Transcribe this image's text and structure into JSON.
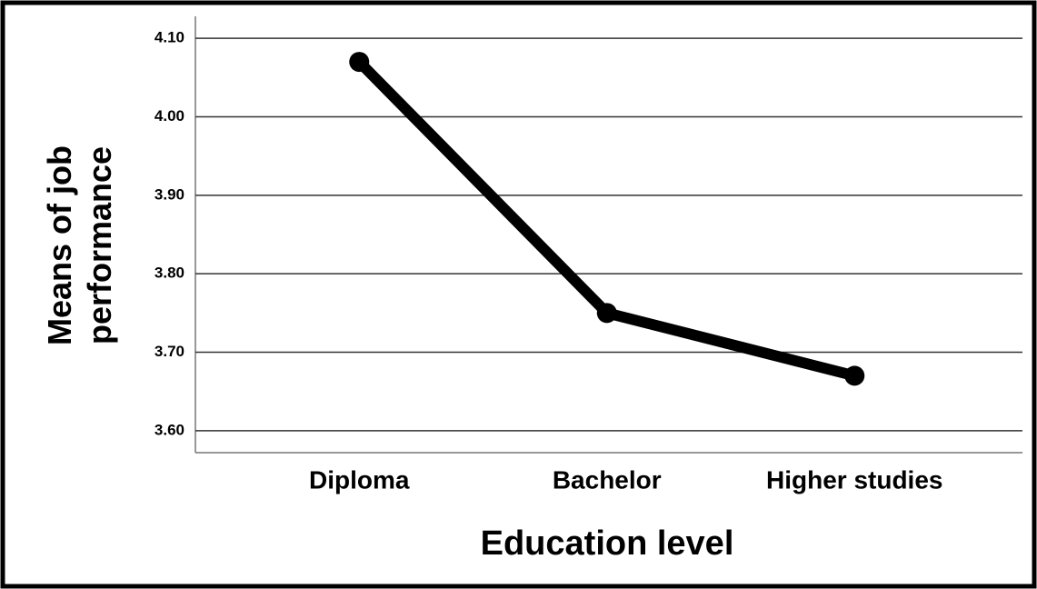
{
  "chart_data": {
    "type": "line",
    "x_label": "Education level",
    "y_label": "Means of job performance",
    "categories": [
      "Diploma",
      "Bachelor",
      "Higher studies"
    ],
    "values": [
      4.07,
      3.75,
      3.67
    ],
    "color": "#000000",
    "ylim": [
      3.572,
      4.128
    ],
    "yticks": [
      {
        "value": 3.6,
        "label": "3.60"
      },
      {
        "value": 3.7,
        "label": "3.70"
      },
      {
        "value": 3.8,
        "label": "3.80"
      },
      {
        "value": 3.9,
        "label": "3.90"
      },
      {
        "value": 4.0,
        "label": "4.00"
      },
      {
        "value": 4.1,
        "label": "4.10"
      }
    ],
    "grid": true
  }
}
